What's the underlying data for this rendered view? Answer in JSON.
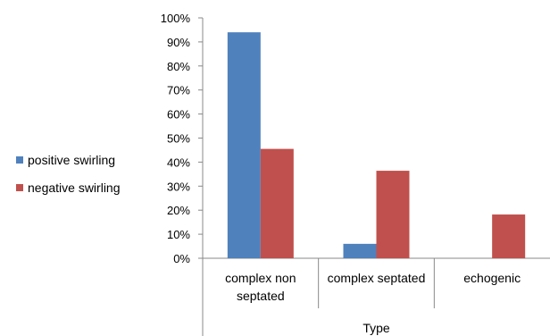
{
  "chart_data": {
    "type": "bar",
    "title": "",
    "xlabel": "Type",
    "ylabel": "",
    "categories": [
      [
        "complex non",
        "septated"
      ],
      [
        "complex septated"
      ],
      [
        "echogenic"
      ]
    ],
    "series": [
      {
        "name": "positive swirling",
        "color": "#4F81BD",
        "values": [
          94,
          6,
          0
        ]
      },
      {
        "name": "negative swirling",
        "color": "#C0504D",
        "values": [
          45.5,
          36.4,
          18.2
        ]
      }
    ],
    "ylim": [
      0,
      100
    ],
    "y_ticks": [
      "0%",
      "10%",
      "20%",
      "30%",
      "40%",
      "50%",
      "60%",
      "70%",
      "80%",
      "90%",
      "100%"
    ],
    "grid": false,
    "legend_position": "left"
  }
}
